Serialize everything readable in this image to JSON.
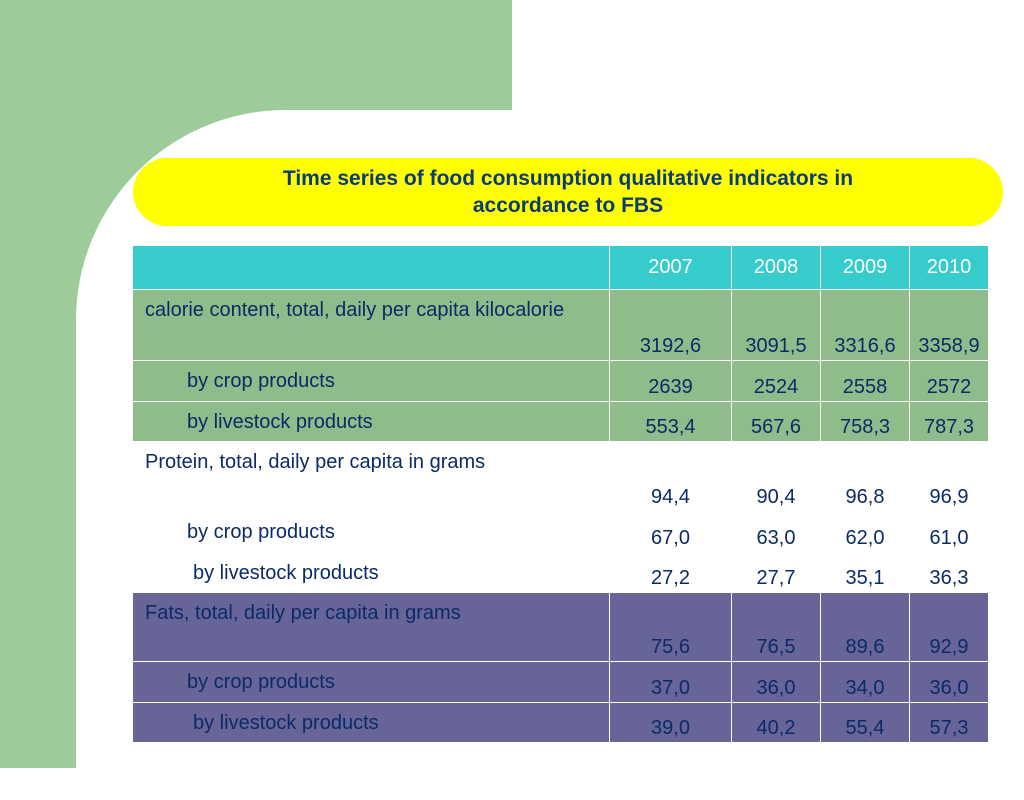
{
  "slide": {
    "title": "Time series of food consumption qualitative indicators in accordance to FBS"
  },
  "table": {
    "years": [
      "2007",
      "2008",
      "2009",
      "2010"
    ],
    "rows": [
      {
        "label": "calorie content, total, daily per capita kilocalorie",
        "values": [
          "3192,6",
          "3091,5",
          "3316,6",
          "3358,9"
        ]
      },
      {
        "label": "by crop products",
        "values": [
          "2639",
          "2524",
          "2558",
          "2572"
        ]
      },
      {
        "label": "by livestock products",
        "values": [
          "553,4",
          "567,6",
          "758,3",
          "787,3"
        ]
      },
      {
        "label": "Protein, total, daily per capita in grams",
        "values": [
          "94,4",
          "90,4",
          "96,8",
          "96,9"
        ]
      },
      {
        "label": "by crop products",
        "values": [
          "67,0",
          "63,0",
          "62,0",
          "61,0"
        ]
      },
      {
        "label": "by livestock products",
        "values": [
          "27,2",
          "27,7",
          "35,1",
          "36,3"
        ]
      },
      {
        "label": "Fats, total, daily per capita in grams",
        "values": [
          "75,6",
          "76,5",
          "89,6",
          "92,9"
        ]
      },
      {
        "label": "by crop products",
        "values": [
          "37,0",
          "36,0",
          "34,0",
          "36,0"
        ]
      },
      {
        "label": "by livestock products",
        "values": [
          "39,0",
          "40,2",
          "55,4",
          "57,3"
        ]
      }
    ]
  },
  "colors": {
    "background_green": "#9dcc9a",
    "title_fill": "#ffff00",
    "title_text": "#0b3a78",
    "header_fill": "#36cccc",
    "calorie_rows": "#8ebc8a",
    "protein_rows": "#ffffff",
    "fats_rows": "#676597",
    "cell_text": "#0b2a66"
  }
}
